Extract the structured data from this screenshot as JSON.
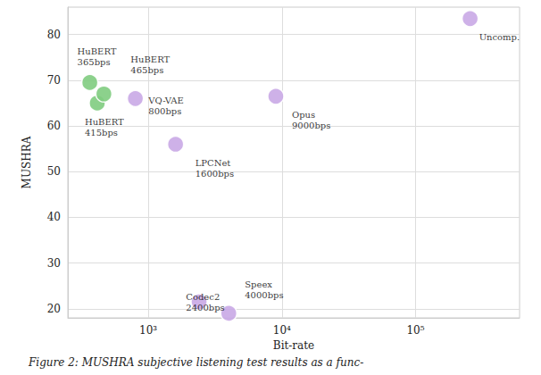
{
  "chart_data": {
    "type": "scatter",
    "xlabel": "Bit-rate",
    "ylabel": "MUSHRA",
    "x": [
      365,
      415,
      465,
      800,
      1600,
      2400,
      4000,
      9000,
      256000
    ],
    "values": [
      69.5,
      65,
      67,
      66,
      56,
      21.5,
      19,
      66.5,
      83.5
    ],
    "labels": [
      "HuBERT\n365bps",
      "HuBERT\n415bps",
      "HuBERT\n465bps",
      "VQ-VAE\n800bps",
      "LPCNet\n1600bps",
      "Codec2\n2400bps",
      "Speex\n4000bps",
      "Opus\n9000bps",
      "Uncomp."
    ],
    "colors": [
      "#7fcc7f",
      "#7fcc7f",
      "#7fcc7f",
      "#c9a9e6",
      "#c9a9e6",
      "#c9a9e6",
      "#c9a9e6",
      "#c9a9e6",
      "#c9a9e6"
    ],
    "marker": "circle",
    "log": "x",
    "xlim": [
      250,
      600000
    ],
    "xticks": [
      {
        "value": 1000,
        "label": "10³"
      },
      {
        "value": 10000,
        "label": "10⁴"
      },
      {
        "value": 100000,
        "label": "10⁵"
      }
    ],
    "ylim": [
      18,
      86
    ],
    "yticks": [
      20,
      30,
      40,
      50,
      60,
      70,
      80
    ],
    "grid": true,
    "caption": "Figure 2: MUSHRA subjective listening test results as a func-"
  }
}
